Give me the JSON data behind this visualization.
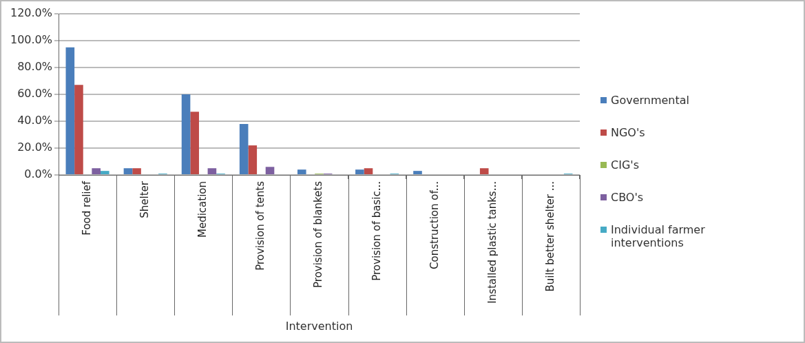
{
  "chart_data": {
    "type": "bar",
    "xlabel": "Intervention",
    "categories": [
      "Food relief",
      "Shelter",
      "Medication",
      "Provision of tents",
      "Provision of blankets",
      "Provision of basic...",
      "Construction of...",
      "Installed plastic tanks...",
      "Built better shelter ..."
    ],
    "series": [
      {
        "name": "Governmental",
        "color": "#4a7ebb",
        "values": [
          95,
          5,
          60,
          38,
          4,
          4,
          3,
          0,
          0
        ]
      },
      {
        "name": "NGO's",
        "color": "#be4b48",
        "values": [
          67,
          5,
          47,
          22,
          0,
          5,
          0,
          5,
          0
        ]
      },
      {
        "name": "CIG's",
        "color": "#98b954",
        "values": [
          0,
          0,
          0.5,
          0,
          1,
          0,
          0,
          0,
          0
        ]
      },
      {
        "name": "CBO's",
        "color": "#7d60a0",
        "values": [
          5,
          0,
          5,
          6,
          1,
          0,
          0,
          0,
          0
        ]
      },
      {
        "name": "Individual farmer interventions",
        "color": "#46aac5",
        "values": [
          3,
          1,
          1,
          0,
          0,
          1,
          0,
          0,
          1
        ]
      }
    ],
    "ylim": [
      0,
      120
    ],
    "yticks": [
      {
        "value": 0,
        "label": "0.0%"
      },
      {
        "value": 20,
        "label": "20.0%"
      },
      {
        "value": 40,
        "label": "40.0%"
      },
      {
        "value": 60,
        "label": "60.0%"
      },
      {
        "value": 80,
        "label": "80.0%"
      },
      {
        "value": 100,
        "label": "100.0%"
      },
      {
        "value": 120,
        "label": "120.0%"
      }
    ],
    "grid": "y",
    "legend": "right"
  }
}
